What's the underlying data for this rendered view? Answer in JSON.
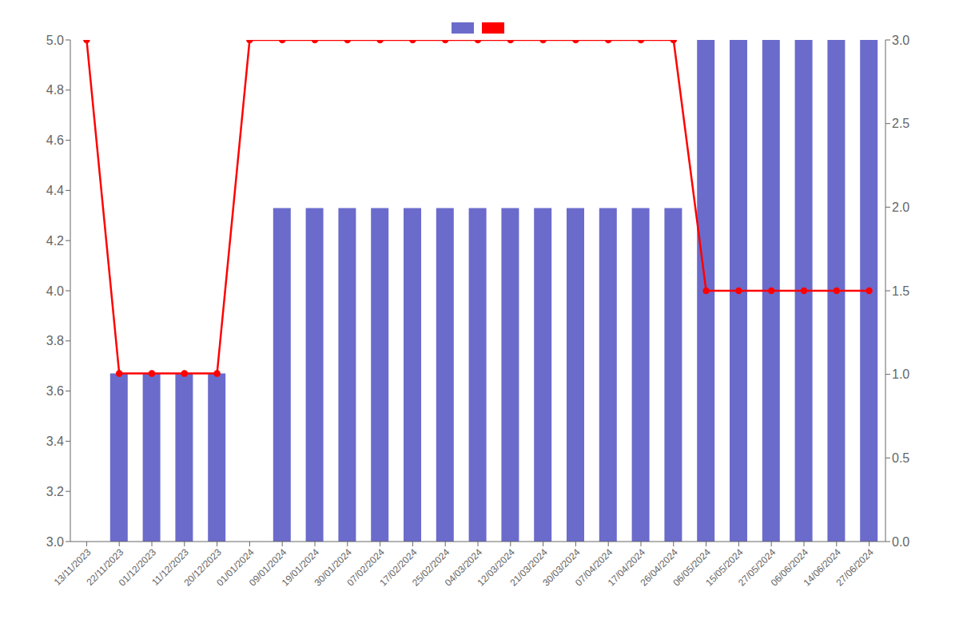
{
  "chart_data": {
    "type": "bar",
    "categories": [
      "13/11/2023",
      "22/11/2023",
      "01/12/2023",
      "11/12/2023",
      "20/12/2023",
      "01/01/2024",
      "09/01/2024",
      "19/01/2024",
      "30/01/2024",
      "07/02/2024",
      "17/02/2024",
      "25/02/2024",
      "04/03/2024",
      "12/03/2024",
      "21/03/2024",
      "30/03/2024",
      "07/04/2024",
      "17/04/2024",
      "26/04/2024",
      "06/05/2024",
      "15/05/2024",
      "27/05/2024",
      "06/06/2024",
      "14/06/2024",
      "27/06/2024"
    ],
    "series": [
      {
        "type": "bar",
        "color": "#6b6bcc",
        "values": [
          null,
          3.67,
          3.67,
          3.67,
          3.67,
          null,
          4.33,
          4.33,
          4.33,
          4.33,
          4.33,
          4.33,
          4.33,
          4.33,
          4.33,
          4.33,
          4.33,
          4.33,
          4.33,
          5.0,
          5.0,
          5.0,
          5.0,
          5.0,
          5.0
        ]
      },
      {
        "type": "line",
        "color": "#ff0000",
        "marker": "circle",
        "values": [
          5.0,
          3.67,
          3.67,
          3.67,
          3.67,
          5.0,
          5.0,
          5.0,
          5.0,
          5.0,
          5.0,
          5.0,
          5.0,
          5.0,
          5.0,
          5.0,
          5.0,
          5.0,
          5.0,
          4.0,
          4.0,
          4.0,
          4.0,
          4.0,
          4.0
        ]
      }
    ],
    "ylim": [
      3.0,
      5.0
    ],
    "yticks": [
      {
        "value": 3,
        "label": "3.0"
      },
      3.2,
      3.4,
      3.6,
      3.8,
      {
        "value": 4,
        "label": "4.0"
      },
      4.2,
      4.4,
      4.6,
      4.8,
      {
        "value": 5,
        "label": "5.0"
      }
    ],
    "y2lim": [
      0,
      3.0
    ],
    "y2ticks": [
      {
        "value": 0,
        "label": "0.0"
      },
      0.5,
      {
        "value": 1,
        "label": "1.0"
      },
      1.5,
      {
        "value": 2,
        "label": "2.0"
      },
      2.5,
      {
        "value": 3,
        "label": "3.0"
      }
    ],
    "grid": false,
    "legend": "top"
  }
}
